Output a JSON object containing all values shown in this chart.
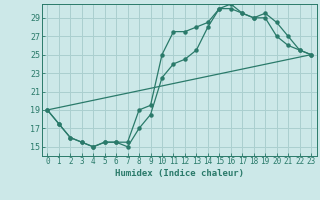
{
  "title": "",
  "xlabel": "Humidex (Indice chaleur)",
  "bg_color": "#cce8e8",
  "grid_color": "#aacfcf",
  "line_color": "#2a7a6a",
  "xlim": [
    -0.5,
    23.5
  ],
  "ylim": [
    14.0,
    30.5
  ],
  "xticks": [
    0,
    1,
    2,
    3,
    4,
    5,
    6,
    7,
    8,
    9,
    10,
    11,
    12,
    13,
    14,
    15,
    16,
    17,
    18,
    19,
    20,
    21,
    22,
    23
  ],
  "yticks": [
    15,
    17,
    19,
    21,
    23,
    25,
    27,
    29
  ],
  "line1_x": [
    0,
    1,
    2,
    3,
    4,
    5,
    6,
    7,
    8,
    9,
    10,
    11,
    12,
    13,
    14,
    15,
    16,
    17,
    18,
    19,
    20,
    21,
    22,
    23
  ],
  "line1_y": [
    19,
    17.5,
    16,
    15.5,
    15,
    15.5,
    15.5,
    15.5,
    19,
    19.5,
    25,
    27.5,
    27.5,
    28,
    28.5,
    30.0,
    30.0,
    29.5,
    29.0,
    29.0,
    27.0,
    26.0,
    25.5,
    25.0
  ],
  "line2_x": [
    0,
    1,
    2,
    3,
    4,
    5,
    6,
    7,
    8,
    9,
    10,
    11,
    12,
    13,
    14,
    15,
    16,
    17,
    18,
    19,
    20,
    21,
    22,
    23
  ],
  "line2_y": [
    19,
    17.5,
    16,
    15.5,
    15.0,
    15.5,
    15.5,
    15.0,
    17.0,
    18.5,
    22.5,
    24.0,
    24.5,
    25.5,
    28.0,
    30.0,
    30.5,
    29.5,
    29.0,
    29.5,
    28.5,
    27.0,
    25.5,
    25.0
  ],
  "line3_x": [
    0,
    23
  ],
  "line3_y": [
    19.0,
    25.0
  ]
}
